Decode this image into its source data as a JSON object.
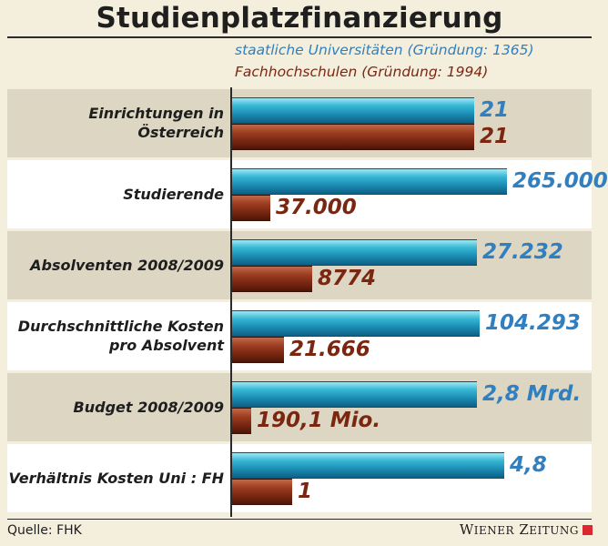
{
  "chart_data": {
    "type": "bar",
    "orientation": "horizontal",
    "title": "Studienplatzfinanzierung",
    "categories": [
      "Einrichtungen in Österreich",
      "Studierende",
      "Absolventen 2008/2009",
      "Durchschnittliche Kosten pro Absolvent",
      "Budget 2008/2009",
      "Verhältnis Kosten Uni : FH"
    ],
    "category_lines": [
      [
        "Einrichtungen in Österreich"
      ],
      [
        "Studierende"
      ],
      [
        "Absolventen 2008/2009"
      ],
      [
        "Durchschnittliche Kosten",
        "pro Absolvent"
      ],
      [
        "Budget 2008/2009"
      ],
      [
        "Verhältnis Kosten Uni : FH"
      ]
    ],
    "series": [
      {
        "name": "staatliche Universitäten (Gründung: 1365)",
        "color": "#2f7fc1",
        "values": [
          21,
          265000,
          27232,
          104293,
          2800000000,
          4.8
        ],
        "labels": [
          "21",
          "265.000",
          "27.232",
          "104.293",
          "2,8 Mrd.",
          "4,8"
        ],
        "bar_fraction": [
          0.88,
          1.0,
          0.89,
          0.9,
          0.89,
          0.99
        ]
      },
      {
        "name": "Fachhochschulen (Gründung: 1994)",
        "color": "#7a2712",
        "values": [
          21,
          37000,
          8774,
          21666,
          190100000,
          1
        ],
        "labels": [
          "21",
          "37.000",
          "8774",
          "21.666",
          "190,1 Mio.",
          "1"
        ],
        "bar_fraction": [
          0.88,
          0.14,
          0.29,
          0.19,
          0.07,
          0.22
        ]
      }
    ],
    "legend_position": "top",
    "grid": false
  },
  "footer": {
    "source": "Quelle: FHK",
    "brand": "WIENER ZEITUNG"
  }
}
